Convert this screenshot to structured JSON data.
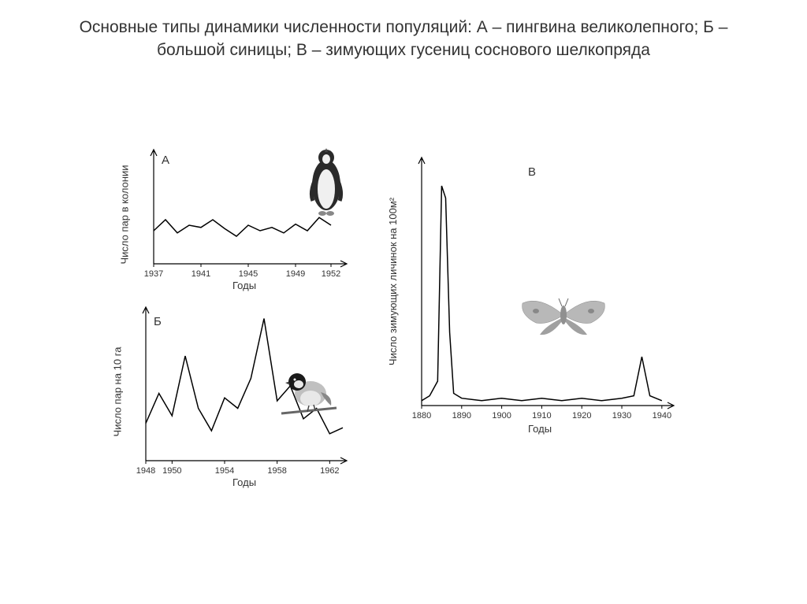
{
  "title": "Основные типы динамики численности популяций: А – пингвина великолепного; Б – большой синицы; В – зимующих гусениц соснового шелкопряда",
  "chartA": {
    "letter": "А",
    "type": "line",
    "ylabel": "Число пар в колонии",
    "xlabel": "Годы",
    "xlim": [
      1937,
      1953
    ],
    "ylim": [
      0,
      100
    ],
    "xticks": [
      1937,
      1941,
      1945,
      1949,
      1952
    ],
    "data_x": [
      1937,
      1938,
      1939,
      1940,
      1941,
      1942,
      1943,
      1944,
      1945,
      1946,
      1947,
      1948,
      1949,
      1950,
      1951,
      1952
    ],
    "data_y": [
      30,
      40,
      28,
      35,
      33,
      40,
      32,
      25,
      35,
      30,
      33,
      28,
      36,
      30,
      42,
      35
    ],
    "line_color": "#000000",
    "line_width": 1.5,
    "background_color": "#ffffff",
    "label_fontsize": 13,
    "tick_fontsize": 11
  },
  "chartB": {
    "letter": "Б",
    "type": "line",
    "ylabel": "Число пар на 10 га",
    "xlabel": "Годы",
    "xlim": [
      1948,
      1963
    ],
    "ylim": [
      0,
      100
    ],
    "xticks": [
      1948,
      1950,
      1954,
      1958,
      1962
    ],
    "data_x": [
      1948,
      1949,
      1950,
      1951,
      1952,
      1953,
      1954,
      1955,
      1956,
      1957,
      1958,
      1959,
      1960,
      1961,
      1962,
      1963
    ],
    "data_y": [
      25,
      45,
      30,
      70,
      35,
      20,
      42,
      35,
      55,
      95,
      40,
      50,
      28,
      35,
      18,
      22
    ],
    "line_color": "#000000",
    "line_width": 1.5,
    "background_color": "#ffffff",
    "label_fontsize": 13,
    "tick_fontsize": 11
  },
  "chartC": {
    "letter": "В",
    "type": "line",
    "ylabel": "Число зимующих личинок на 100м²",
    "xlabel": "Годы",
    "xlim": [
      1880,
      1942
    ],
    "ylim": [
      0,
      100
    ],
    "xticks": [
      1880,
      1890,
      1900,
      1910,
      1920,
      1930,
      1940
    ],
    "data_x": [
      1880,
      1882,
      1884,
      1885,
      1886,
      1887,
      1888,
      1890,
      1895,
      1900,
      1905,
      1910,
      1915,
      1920,
      1925,
      1930,
      1933,
      1935,
      1937,
      1940
    ],
    "data_y": [
      2,
      4,
      10,
      90,
      85,
      30,
      5,
      3,
      2,
      3,
      2,
      3,
      2,
      3,
      2,
      3,
      4,
      20,
      4,
      2
    ],
    "line_color": "#000000",
    "line_width": 1.5,
    "background_color": "#ffffff",
    "label_fontsize": 13,
    "tick_fontsize": 11
  },
  "icons": {
    "penguin_colors": {
      "body": "#2a2a2a",
      "belly": "#f0f0f0",
      "feet": "#888888"
    },
    "bird_colors": {
      "body": "#c0c0c0",
      "head": "#1a1a1a",
      "belly": "#e8e8e8",
      "branch": "#666666"
    },
    "moth_colors": {
      "wing": "#b8b8b8",
      "wing_dark": "#888888",
      "body": "#909090"
    }
  }
}
